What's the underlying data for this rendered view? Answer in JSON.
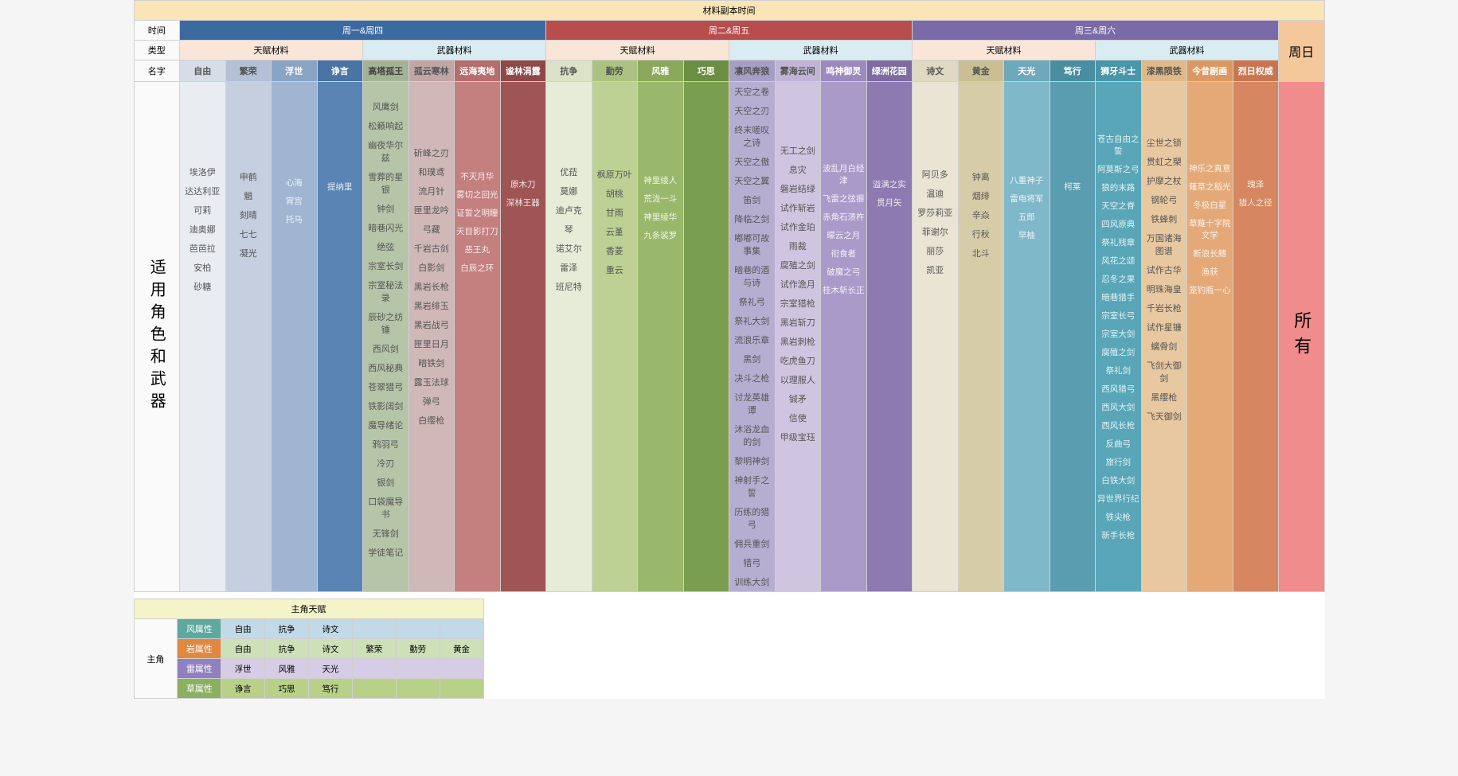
{
  "title": "材料副本时间",
  "row_labels": {
    "time": "时间",
    "type": "类型",
    "name": "名字",
    "side": "适用角色和武器",
    "main_char": "主角"
  },
  "days": [
    {
      "label": "周一&周四",
      "color": "#3b6aa0"
    },
    {
      "label": "周二&周五",
      "color": "#b84d4d"
    },
    {
      "label": "周三&周六",
      "color": "#7a6aa8"
    }
  ],
  "sunday": {
    "label": "周日",
    "all": "所有",
    "bg_header": "#f5c89b",
    "bg_body": "#f08c8c"
  },
  "type_headers": {
    "talent": "天赋材料",
    "weapon": "武器材料",
    "talent_bg": "#fae6d9",
    "weapon_bg": "#d9ecf2"
  },
  "columns": [
    {
      "name": "自由",
      "bg": "#e9edf2",
      "hbg": "#d6dde6",
      "txt": "#555",
      "items": [
        "埃洛伊",
        "达达利亚",
        "可莉",
        "迪奥娜",
        "芭芭拉",
        "安柏",
        "砂糖"
      ]
    },
    {
      "name": "繁荣",
      "bg": "#c5cfe0",
      "hbg": "#b3c0d6",
      "txt": "#555",
      "items": [
        "申鹤",
        "魈",
        "刻晴",
        "七七",
        "凝光"
      ]
    },
    {
      "name": "浮世",
      "bg": "#9fb5d1",
      "hbg": "#8aa4c6",
      "txt": "#fff",
      "items": [
        "心海",
        "宵宫",
        "托马"
      ]
    },
    {
      "name": "诤言",
      "bg": "#5a84b3",
      "hbg": "#4a74a3",
      "txt": "#fff",
      "items": [
        "提纳里"
      ]
    },
    {
      "name": "高塔孤王",
      "bg": "#b6c4a8",
      "hbg": "#a3b394",
      "txt": "#444",
      "items": [
        "风鹰剑",
        "松籁响起",
        "幽夜华尔兹",
        "雪葬的星银",
        "钟剑",
        "暗巷闪光",
        "绝弦",
        "宗室长剑",
        "宗室秘法录",
        "辰砂之纺锤",
        "西风剑",
        "西风秘典",
        "苍翠猎弓",
        "铁影阔剑",
        "魔导绪论",
        "鸦羽弓",
        "冷刃",
        "银剑",
        "口袋魔导书",
        "无锋剑",
        "学徒笔记"
      ]
    },
    {
      "name": "孤云寒林",
      "bg": "#d0b8b8",
      "hbg": "#c2a6a6",
      "txt": "#555",
      "items": [
        "斫峰之刃",
        "和璞鸢",
        "流月针",
        "匣里龙吟",
        "弓藏",
        "千岩古剑",
        "白影剑",
        "黑岩长枪",
        "黑岩绯玉",
        "黑岩战弓",
        "匣里日月",
        "暗铁剑",
        "露玉法球",
        "弹弓",
        "白缨枪"
      ]
    },
    {
      "name": "远海夷地",
      "bg": "#c47f7f",
      "hbg": "#b56e6e",
      "txt": "#fff",
      "items": [
        "不灭月华",
        "雾切之回光",
        "证誓之明瞳",
        "天目影打刀",
        "恶王丸",
        "白辰之环"
      ]
    },
    {
      "name": "谧林涓露",
      "bg": "#a05555",
      "hbg": "#8f4848",
      "txt": "#fff",
      "items": [
        "原木刀",
        "深林王器"
      ]
    },
    {
      "name": "抗争",
      "bg": "#e7ecd9",
      "hbg": "#dbe2c8",
      "txt": "#555",
      "items": [
        "优菈",
        "莫娜",
        "迪卢克",
        "琴",
        "诺艾尔",
        "雷泽",
        "班尼特"
      ]
    },
    {
      "name": "勤劳",
      "bg": "#bdd194",
      "hbg": "#acc282",
      "txt": "#555",
      "items": [
        "枫原万叶",
        "胡桃",
        "甘雨",
        "云堇",
        "香菱",
        "重云"
      ]
    },
    {
      "name": "风雅",
      "bg": "#9ab86b",
      "hbg": "#8aa95b",
      "txt": "#fff",
      "items": [
        "神里绫人",
        "荒泷一斗",
        "神里绫华",
        "九条裟罗"
      ]
    },
    {
      "name": "巧思",
      "bg": "#7a9e4f",
      "hbg": "#6b8f42",
      "txt": "#fff",
      "items": []
    },
    {
      "name": "凛风奔狼",
      "bg": "#b6aed1",
      "hbg": "#a79ec6",
      "txt": "#555",
      "items": [
        "天空之卷",
        "天空之刃",
        "终末嗟叹之诗",
        "天空之傲",
        "天空之翼",
        "笛剑",
        "降临之剑",
        "嘟嘟可故事集",
        "暗巷的酒与诗",
        "祭礼弓",
        "祭礼大剑",
        "流浪乐章",
        "黑剑",
        "决斗之枪",
        "讨龙英雄谭",
        "沐浴龙血的剑",
        "黎明神剑",
        "神射手之誓",
        "历练的猎弓",
        "佣兵重剑",
        "猎弓",
        "训练大剑"
      ]
    },
    {
      "name": "雾海云间",
      "bg": "#cfc5e0",
      "hbg": "#c1b5d6",
      "txt": "#555",
      "items": [
        "无工之剑",
        "息灾",
        "磐岩结绿",
        "试作斩岩",
        "试作金珀",
        "雨裁",
        "腐殖之剑",
        "试作澹月",
        "宗室猎枪",
        "黑岩斩刀",
        "黑岩刺枪",
        "吃虎鱼刀",
        "以理服人",
        "铖矛",
        "信使",
        "甲级宝珏"
      ]
    },
    {
      "name": "鸣神御灵",
      "bg": "#aa9ac9",
      "hbg": "#9c8abf",
      "txt": "#fff",
      "items": [
        "波乱月白经津",
        "飞雷之弦振",
        "赤角石溃杵",
        "曚云之月",
        "衔食者",
        "破魔之弓",
        "桂木斩长正"
      ]
    },
    {
      "name": "绿洲花园",
      "bg": "#8c7ab0",
      "hbg": "#7d6ba1",
      "txt": "#fff",
      "items": [
        "溢满之实",
        "贯月矢"
      ]
    },
    {
      "name": "诗文",
      "bg": "#e9e4d4",
      "hbg": "#dfd9c4",
      "txt": "#555",
      "items": [
        "阿贝多",
        "温迪",
        "罗莎莉亚",
        "菲谢尔",
        "丽莎",
        "凯亚"
      ]
    },
    {
      "name": "黄金",
      "bg": "#d6cca8",
      "hbg": "#c9be94",
      "txt": "#555",
      "items": [
        "钟离",
        "烟绯",
        "辛焱",
        "行秋",
        "北斗"
      ]
    },
    {
      "name": "天光",
      "bg": "#7fb8c9",
      "hbg": "#6da9bb",
      "txt": "#fff",
      "items": [
        "八重神子",
        "雷电将军",
        "五郎",
        "早柚"
      ]
    },
    {
      "name": "笃行",
      "bg": "#5a9db0",
      "hbg": "#4a8da0",
      "txt": "#fff",
      "items": [
        "柯莱"
      ]
    },
    {
      "name": "狮牙斗士",
      "bg": "#58a6b8",
      "hbg": "#4896a8",
      "txt": "#fff",
      "items": [
        "苍古自由之誓",
        "阿莫斯之弓",
        "狼的末路",
        "天空之脊",
        "四风原典",
        "祭礼残章",
        "风花之颂",
        "忍冬之果",
        "暗巷猎手",
        "宗室长弓",
        "宗室大剑",
        "腐殖之剑",
        "祭礼剑",
        "西风猎弓",
        "西风大剑",
        "西风长枪",
        "反曲弓",
        "旅行剑",
        "白铁大剑",
        "异世界行纪",
        "铁尖枪",
        "新手长枪"
      ]
    },
    {
      "name": "漆黑陨铁",
      "bg": "#e8c8a0",
      "hbg": "#dfb988",
      "txt": "#555",
      "items": [
        "尘世之锁",
        "贯虹之槊",
        "护摩之杖",
        "钢轮弓",
        "铁蜂刺",
        "万国诸海图谱",
        "试作古华",
        "明珠海皇",
        "千岩长枪",
        "试作星镰",
        "螭骨剑",
        "飞剑大御剑",
        "黑缨枪",
        "飞天御剑"
      ]
    },
    {
      "name": "今昔剧画",
      "bg": "#e5a978",
      "hbg": "#db9862",
      "txt": "#fff",
      "items": [
        "神乐之真意",
        "薙草之稻光",
        "冬极白星",
        "草薙十字院文学",
        "断浪长鳍",
        "渔获",
        "笼钓瓶一心"
      ]
    },
    {
      "name": "烈日权威",
      "bg": "#d68660",
      "hbg": "#c97650",
      "txt": "#fff",
      "items": [
        "瑰泽",
        "猎人之径"
      ]
    }
  ],
  "protagonist": {
    "title": "主角天赋",
    "rows": [
      {
        "label": "风属性",
        "color": "#5ea8a0",
        "bg": "#c2d9e8",
        "mats": [
          "自由",
          "抗争",
          "诗文"
        ]
      },
      {
        "label": "岩属性",
        "color": "#e08840",
        "bg": "#cde0b8",
        "mats": [
          "自由",
          "抗争",
          "诗文",
          "繁荣",
          "勤劳",
          "黄金"
        ]
      },
      {
        "label": "雷属性",
        "color": "#9080c0",
        "bg": "#d6cce6",
        "mats": [
          "浮世",
          "风雅",
          "天光"
        ]
      },
      {
        "label": "草属性",
        "color": "#8ab060",
        "bg": "#b8d088",
        "mats": [
          "诤言",
          "巧思",
          "笃行"
        ]
      }
    ]
  }
}
